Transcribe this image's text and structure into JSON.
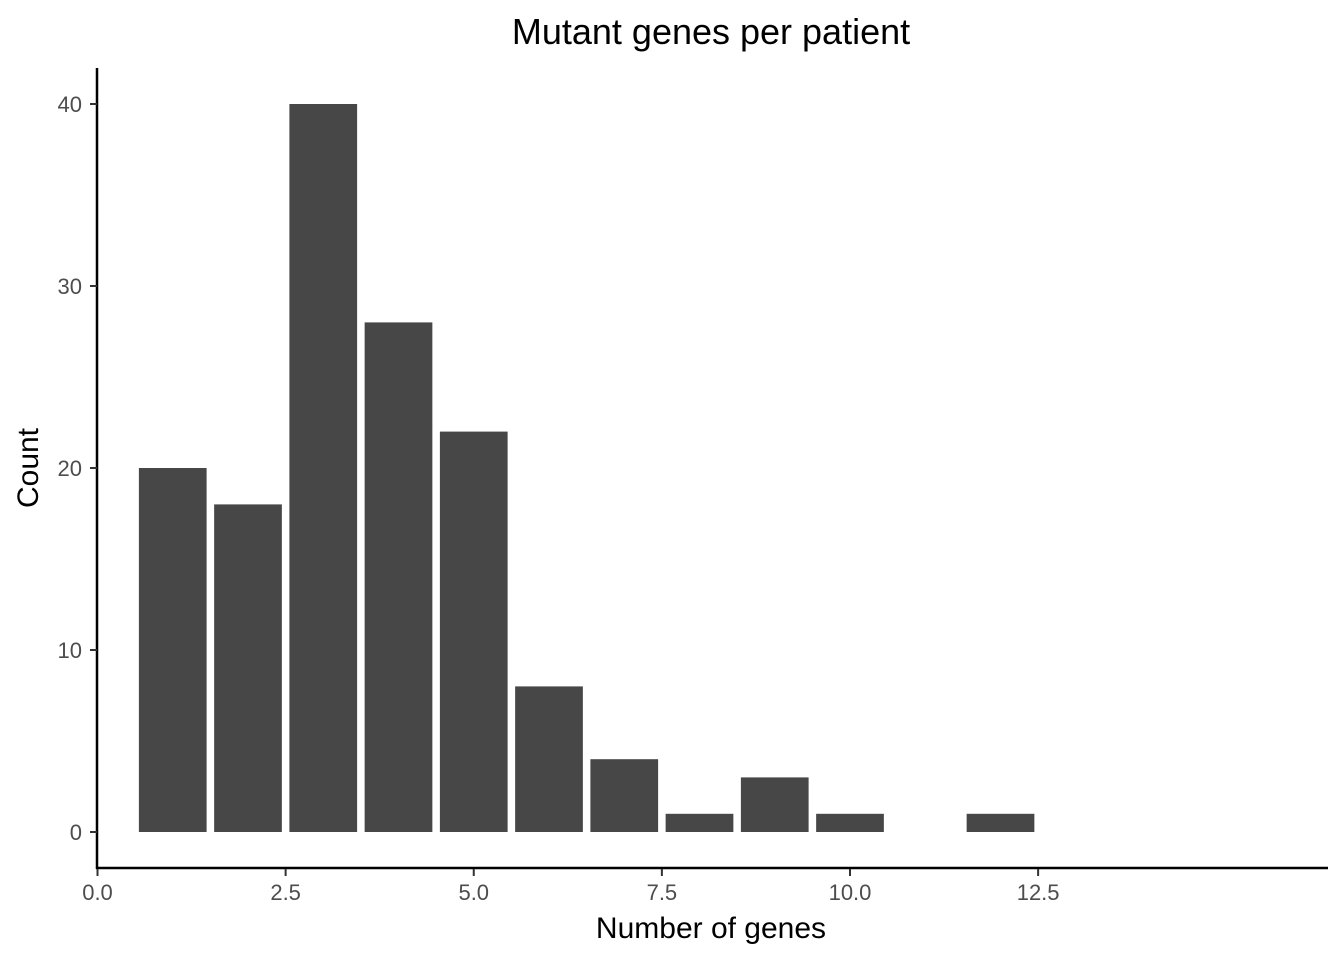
{
  "chart_data": {
    "type": "bar",
    "title": "Mutant genes per patient",
    "xlabel": "Number of genes",
    "ylabel": "Count",
    "x": [
      1,
      2,
      3,
      4,
      5,
      6,
      7,
      8,
      9,
      10,
      12
    ],
    "values": [
      20,
      18,
      40,
      28,
      22,
      8,
      4,
      1,
      3,
      1,
      1
    ],
    "bar_width": 0.9,
    "xlim": [
      0,
      12.5
    ],
    "ylim": [
      0,
      40
    ],
    "xticks": [
      0,
      2.5,
      5,
      7.5,
      10,
      12.5
    ],
    "xtick_labels": [
      "0.0",
      "2.5",
      "5.0",
      "7.5",
      "10.0",
      "12.5"
    ],
    "yticks": [
      0,
      10,
      20,
      30,
      40
    ],
    "ytick_labels": [
      "0",
      "10",
      "20",
      "30",
      "40"
    ],
    "grid": false,
    "legend": "none",
    "bar_color": "#474747"
  }
}
